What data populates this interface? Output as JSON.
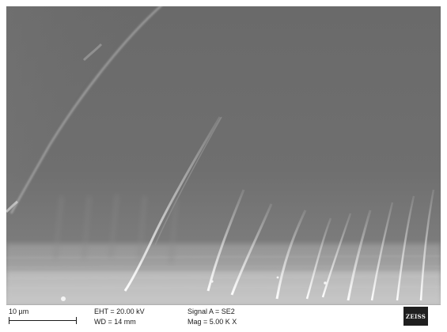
{
  "image": {
    "description_kind": "sem-micrograph",
    "dominant_tone": "#6e6e6e"
  },
  "databar": {
    "scale_label": "10 µm",
    "eht": "EHT = 20.00 kV",
    "wd": "WD =  14 mm",
    "signal": "Signal A = SE2",
    "mag": "Mag =  5.00 K X",
    "logo": "ZEISS"
  }
}
